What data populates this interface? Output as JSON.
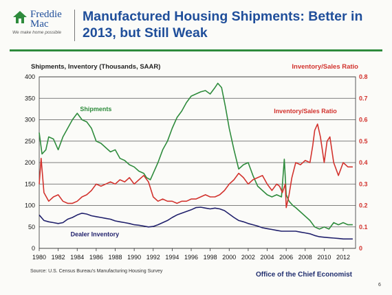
{
  "logo": {
    "line1": "Freddie",
    "line2": "Mac",
    "tagline": "We make home possible"
  },
  "title": "Manufactured Housing Shipments: Better in 2013, but Still Weak",
  "footer": {
    "source": "Source: U.S. Census Bureau's Manufacturing Housing Survey",
    "office": "Office of the Chief Economist",
    "page": "6"
  },
  "colors": {
    "shipments": "#2e8b3c",
    "ratio": "#d2322d",
    "inventory": "#1f1f6b",
    "title": "#1f4e9a"
  },
  "chart_data": {
    "type": "line",
    "ylabel": "Shipments, Inventory (Thousands, SAAR)",
    "y2label": "Inventory/Sales Ratio",
    "xlim": [
      1980,
      2013.3
    ],
    "ylim": [
      0,
      400
    ],
    "y2lim": [
      0,
      0.8
    ],
    "xticks": [
      "1980",
      "1982",
      "1984",
      "1986",
      "1988",
      "1990",
      "1992",
      "1994",
      "1996",
      "1998",
      "2000",
      "2002",
      "2004",
      "2006",
      "2008",
      "2010",
      "2012"
    ],
    "yticks": [
      "0",
      "50",
      "100",
      "150",
      "200",
      "250",
      "300",
      "350",
      "400"
    ],
    "y2ticks": [
      "0",
      "0.1",
      "0.2",
      "0.3",
      "0.4",
      "0.5",
      "0.6",
      "0.7",
      "0.8"
    ],
    "grid": true,
    "series": [
      {
        "name": "Shipments",
        "axis": "left",
        "color": "#2e8b3c",
        "x": [
          1980,
          1980.3,
          1980.7,
          1981,
          1981.5,
          1982,
          1982.5,
          1983,
          1983.5,
          1984,
          1984.5,
          1985,
          1985.5,
          1986,
          1986.5,
          1987,
          1987.5,
          1988,
          1988.5,
          1989,
          1989.5,
          1990,
          1990.5,
          1991,
          1991.3,
          1991.7,
          1992,
          1992.5,
          1993,
          1993.5,
          1994,
          1994.5,
          1995,
          1995.5,
          1996,
          1996.5,
          1997,
          1997.5,
          1998,
          1998.5,
          1998.8,
          1999.2,
          1999.6,
          2000,
          2000.5,
          2001,
          2001.5,
          2002,
          2002.5,
          2003,
          2003.5,
          2004,
          2004.5,
          2005,
          2005.5,
          2005.8,
          2006,
          2006.3,
          2006.7,
          2007,
          2007.5,
          2008,
          2008.5,
          2009,
          2009.5,
          2010,
          2010.5,
          2011,
          2011.5,
          2012,
          2012.5,
          2013
        ],
        "y": [
          270,
          220,
          230,
          260,
          255,
          230,
          260,
          280,
          300,
          315,
          300,
          295,
          280,
          250,
          245,
          235,
          225,
          230,
          210,
          205,
          195,
          190,
          180,
          175,
          165,
          160,
          175,
          200,
          230,
          250,
          280,
          305,
          320,
          340,
          355,
          360,
          365,
          368,
          360,
          375,
          385,
          375,
          330,
          280,
          230,
          185,
          195,
          200,
          170,
          145,
          135,
          125,
          120,
          125,
          120,
          208,
          125,
          110,
          100,
          95,
          85,
          75,
          65,
          50,
          45,
          50,
          45,
          60,
          55,
          60,
          55,
          55
        ]
      },
      {
        "name": "Inventory/Sales Ratio",
        "axis": "right",
        "color": "#d2322d",
        "x": [
          1980,
          1980.2,
          1980.5,
          1981,
          1981.5,
          1982,
          1982.5,
          1983,
          1983.5,
          1984,
          1984.5,
          1985,
          1985.5,
          1986,
          1986.5,
          1987,
          1987.5,
          1988,
          1988.5,
          1989,
          1989.5,
          1990,
          1990.5,
          1991,
          1991.5,
          1992,
          1992.5,
          1993,
          1993.5,
          1994,
          1994.5,
          1995,
          1995.5,
          1996,
          1996.5,
          1997,
          1997.5,
          1998,
          1998.5,
          1999,
          1999.5,
          2000,
          2000.5,
          2001,
          2001.5,
          2002,
          2002.5,
          2003,
          2003.5,
          2004,
          2004.5,
          2005,
          2005.3,
          2005.6,
          2005.9,
          2006,
          2006.3,
          2006.6,
          2007,
          2007.5,
          2008,
          2008.5,
          2008.8,
          2009,
          2009.3,
          2009.6,
          2010,
          2010.3,
          2010.6,
          2011,
          2011.5,
          2012,
          2012.5,
          2013
        ],
        "y": [
          0.3,
          0.42,
          0.26,
          0.22,
          0.24,
          0.25,
          0.22,
          0.21,
          0.21,
          0.22,
          0.24,
          0.25,
          0.27,
          0.3,
          0.29,
          0.3,
          0.31,
          0.3,
          0.32,
          0.31,
          0.33,
          0.3,
          0.32,
          0.34,
          0.31,
          0.24,
          0.22,
          0.23,
          0.22,
          0.22,
          0.21,
          0.22,
          0.22,
          0.23,
          0.23,
          0.24,
          0.25,
          0.24,
          0.24,
          0.25,
          0.27,
          0.3,
          0.32,
          0.35,
          0.33,
          0.3,
          0.32,
          0.33,
          0.34,
          0.3,
          0.27,
          0.3,
          0.29,
          0.26,
          0.3,
          0.19,
          0.25,
          0.33,
          0.4,
          0.39,
          0.41,
          0.4,
          0.48,
          0.55,
          0.58,
          0.52,
          0.4,
          0.5,
          0.52,
          0.4,
          0.34,
          0.4,
          0.38,
          0.38
        ]
      },
      {
        "name": "Dealer Inventory",
        "axis": "left",
        "color": "#1f1f6b",
        "x": [
          1980,
          1980.5,
          1981,
          1981.5,
          1982,
          1982.5,
          1983,
          1983.5,
          1984,
          1984.5,
          1985,
          1985.5,
          1986,
          1986.5,
          1987,
          1987.5,
          1988,
          1988.5,
          1989,
          1989.5,
          1990,
          1990.5,
          1991,
          1991.5,
          1992,
          1992.5,
          1993,
          1993.5,
          1994,
          1994.5,
          1995,
          1995.5,
          1996,
          1996.5,
          1997,
          1997.5,
          1998,
          1998.5,
          1999,
          1999.5,
          2000,
          2000.5,
          2001,
          2001.5,
          2002,
          2002.5,
          2003,
          2003.5,
          2004,
          2004.5,
          2005,
          2005.5,
          2006,
          2006.5,
          2007,
          2007.5,
          2008,
          2008.5,
          2009,
          2009.5,
          2010,
          2010.5,
          2011,
          2011.5,
          2012,
          2012.5,
          2013
        ],
        "y": [
          78,
          65,
          62,
          60,
          58,
          60,
          68,
          72,
          78,
          82,
          80,
          76,
          74,
          72,
          70,
          68,
          64,
          62,
          60,
          58,
          55,
          54,
          52,
          50,
          51,
          55,
          60,
          65,
          72,
          78,
          82,
          86,
          90,
          95,
          96,
          94,
          92,
          94,
          92,
          88,
          80,
          72,
          65,
          62,
          58,
          55,
          52,
          48,
          46,
          44,
          42,
          40,
          40,
          40,
          40,
          38,
          36,
          34,
          30,
          27,
          26,
          25,
          24,
          23,
          22,
          22,
          22
        ]
      }
    ],
    "annotations": [
      {
        "text": "Shipments",
        "x": 1984.3,
        "y": 320,
        "axis": "left",
        "color": "#2e8b3c"
      },
      {
        "text": "Inventory/Sales Ratio",
        "x": 2004.7,
        "y": 0.63,
        "axis": "right",
        "color": "#d2322d"
      },
      {
        "text": "Dealer Inventory",
        "x": 1983.3,
        "y": 28,
        "axis": "left",
        "color": "#1f1f6b"
      }
    ]
  }
}
